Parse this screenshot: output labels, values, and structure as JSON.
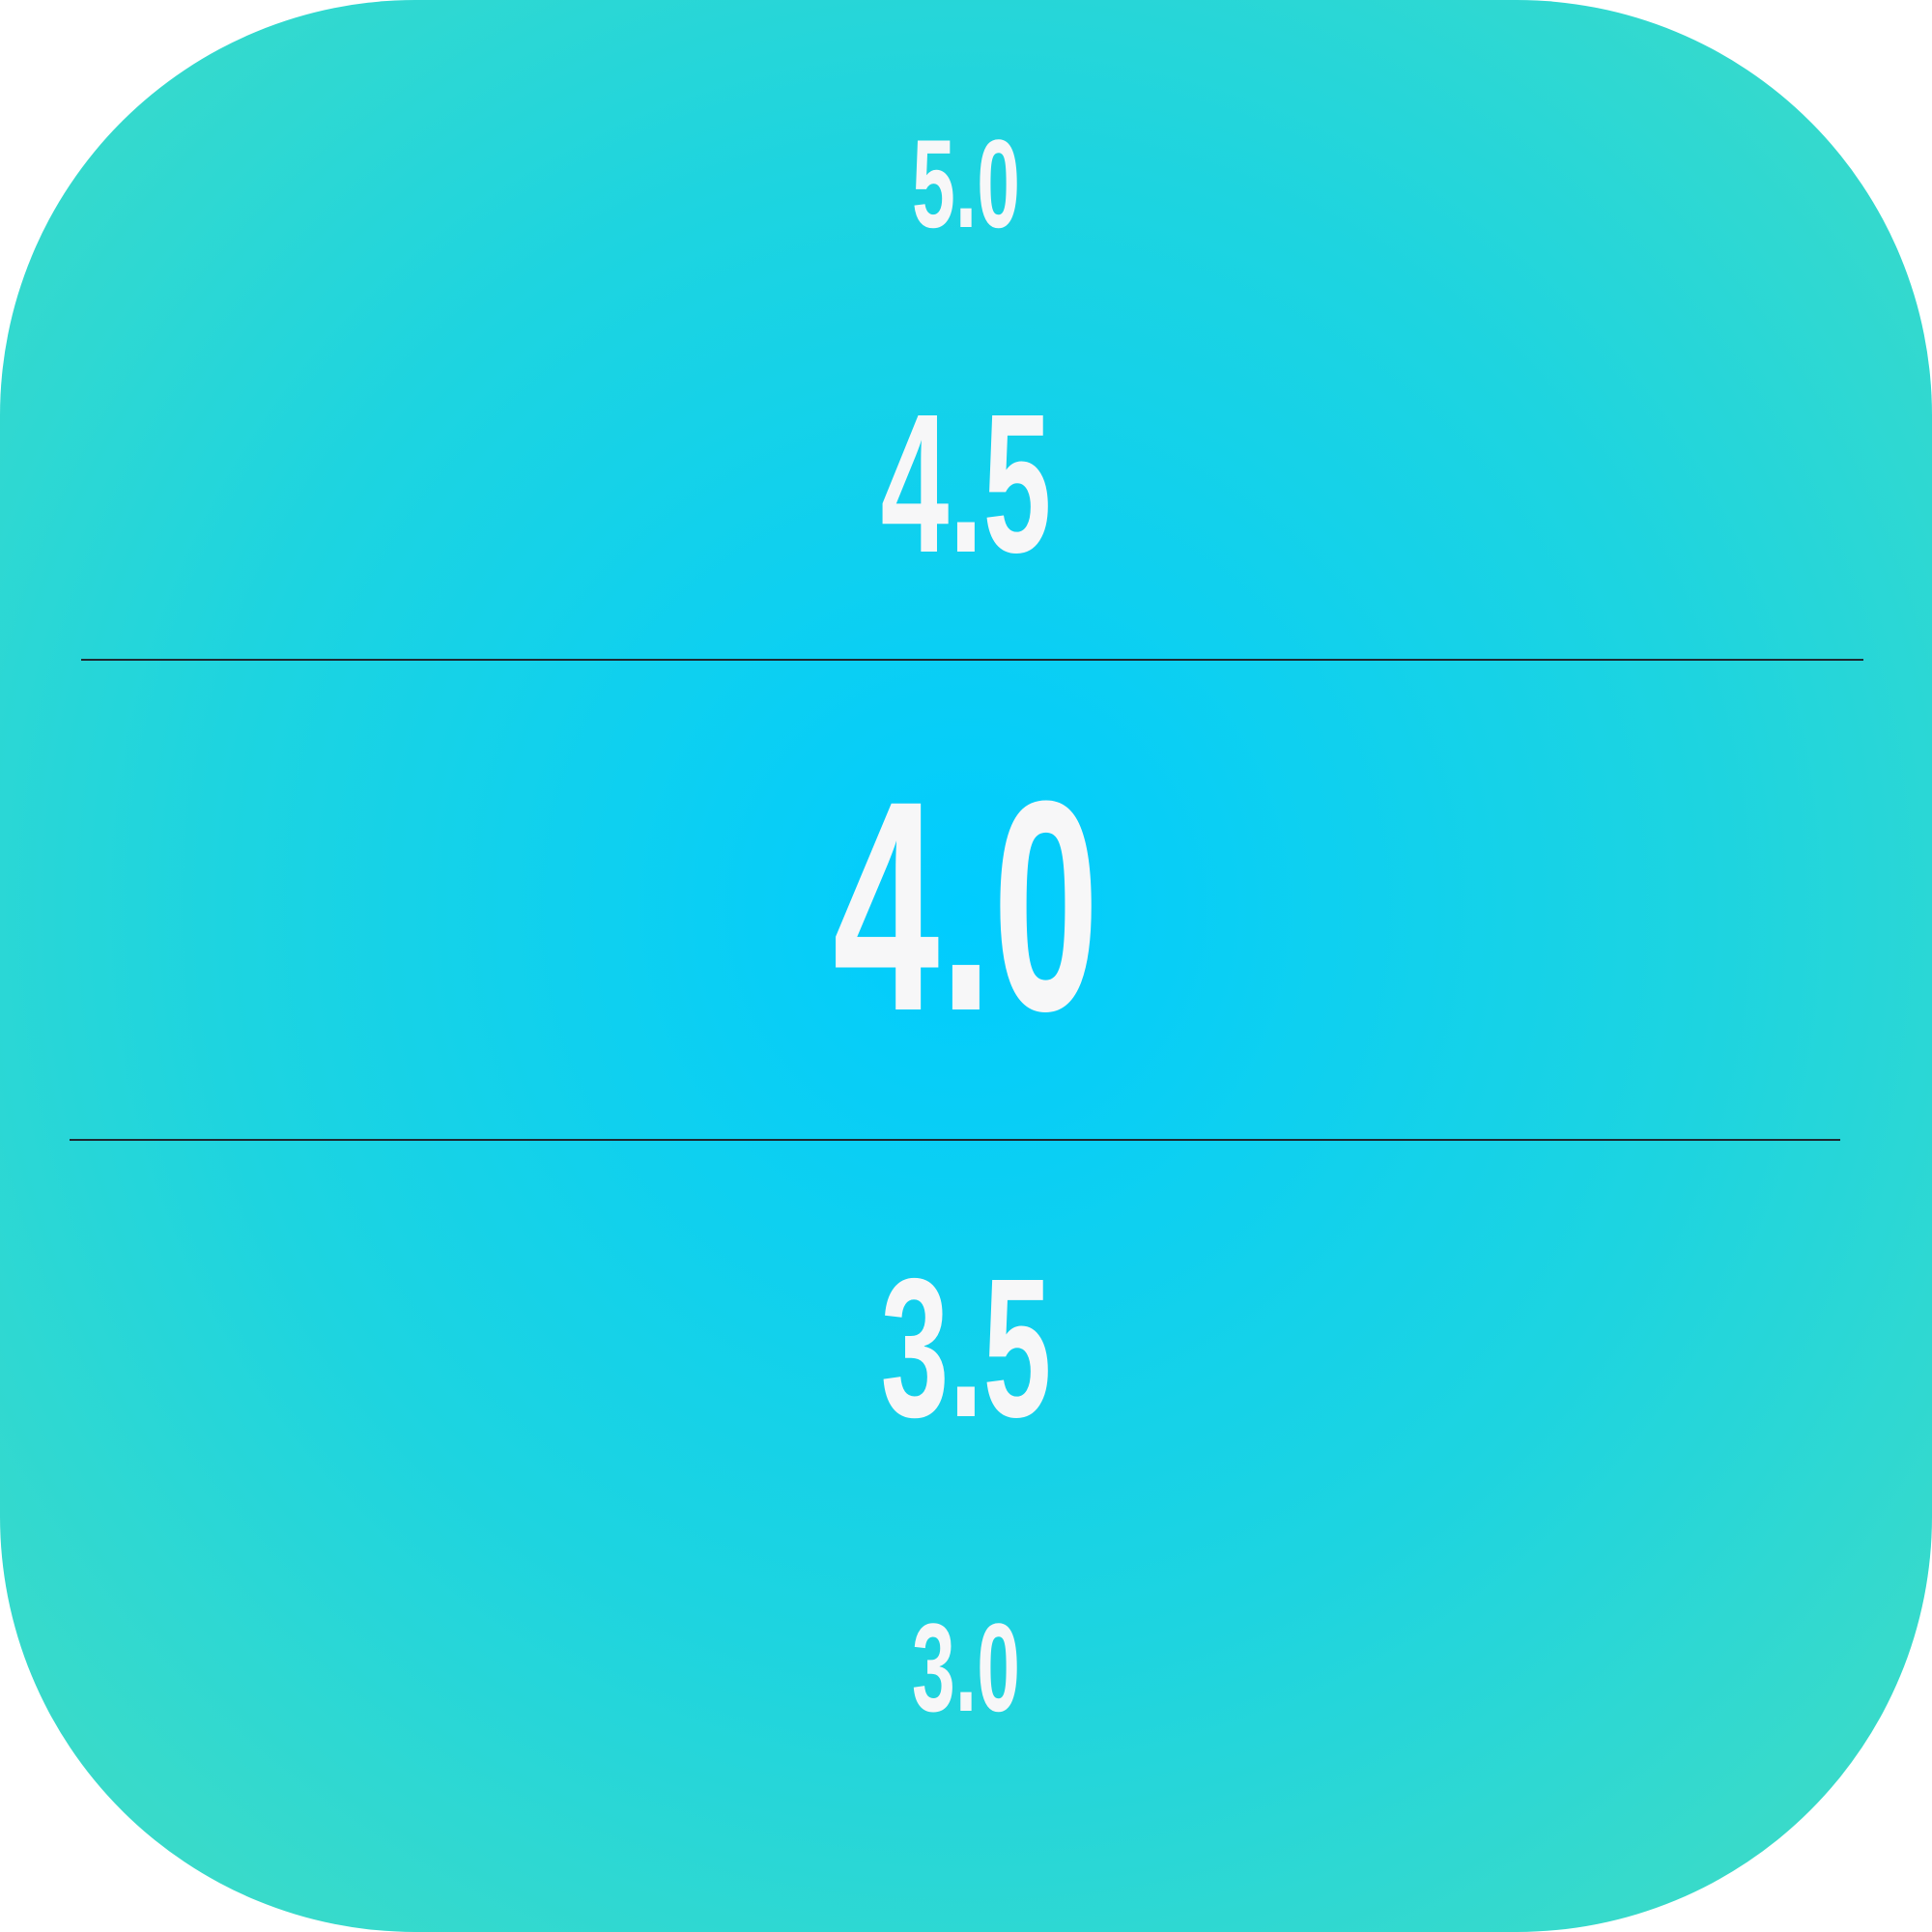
{
  "picker": {
    "above_2": "5.0",
    "above_1": "4.5",
    "selected": "4.0",
    "below_1": "3.5",
    "below_2": "3.0"
  },
  "colors": {
    "center": "#00ccff",
    "edge": "#40dcc4",
    "text": "#f7f7f8",
    "divider": "#1e2a33"
  }
}
